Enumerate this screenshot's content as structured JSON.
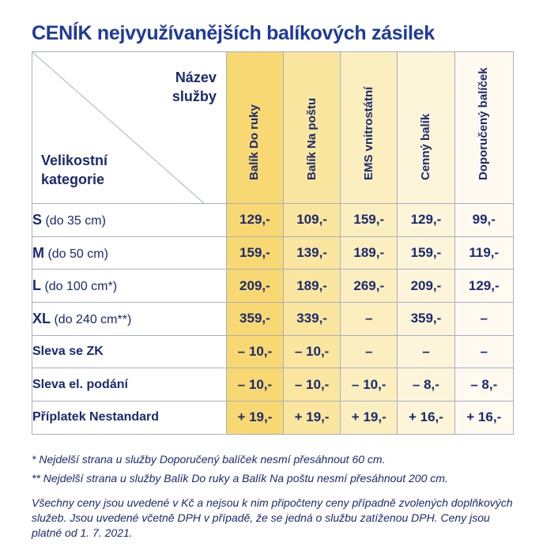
{
  "title": "CENÍK nejvyužívanějších balíkových zásilek",
  "header": {
    "name_label_line1": "Název",
    "name_label_line2": "služby",
    "category_label_line1": "Velikostní",
    "category_label_line2": "kategorie",
    "services": [
      "Balík Do ruky",
      "Balík Na poštu",
      "EMS vnitrostátní",
      "Cenný balík",
      "Doporučený balíček"
    ]
  },
  "rows": [
    {
      "label_bold": "S",
      "label_rest": " (do 35 cm)",
      "values": [
        "129,-",
        "109,-",
        "159,-",
        "129,-",
        "99,-"
      ]
    },
    {
      "label_bold": "M",
      "label_rest": " (do 50 cm)",
      "values": [
        "159,-",
        "139,-",
        "189,-",
        "159,-",
        "119,-"
      ]
    },
    {
      "label_bold": "L",
      "label_rest": " (do 100 cm*)",
      "values": [
        "209,-",
        "189,-",
        "269,-",
        "209,-",
        "129,-"
      ]
    },
    {
      "label_bold": "XL",
      "label_rest": " (do 240 cm**)",
      "values": [
        "359,-",
        "339,-",
        "–",
        "359,-",
        "–"
      ]
    },
    {
      "label_bold": "Sleva se ZK",
      "label_rest": "",
      "values": [
        "– 10,-",
        "– 10,-",
        "–",
        "–",
        "–"
      ]
    },
    {
      "label_bold": "Sleva el. podání",
      "label_rest": "",
      "values": [
        "– 10,-",
        "– 10,-",
        "– 10,-",
        "– 8,-",
        "– 8,-"
      ]
    },
    {
      "label_bold": "Příplatek Nestandard",
      "label_rest": "",
      "values": [
        "+ 19,-",
        "+ 19,-",
        "+ 19,-",
        "+ 16,-",
        "+ 16,-"
      ]
    }
  ],
  "notes": {
    "note1": "* Nejdelší strana u služby Doporučený balíček nesmí přesáhnout 60 cm.",
    "note2": "** Nejdelší strana u služby Balík Do ruky a Balík Na poštu nesmí přesáhnout 200 cm.",
    "note3": "Všechny ceny jsou uvedené v Kč a nejsou k nim připočteny ceny případně zvolených do­plňkových služeb. Jsou uvedené včetně DPH v případě, že se jedná o službu zatíženou DPH. Ceny jsou platné od 1. 7. 2021."
  }
}
